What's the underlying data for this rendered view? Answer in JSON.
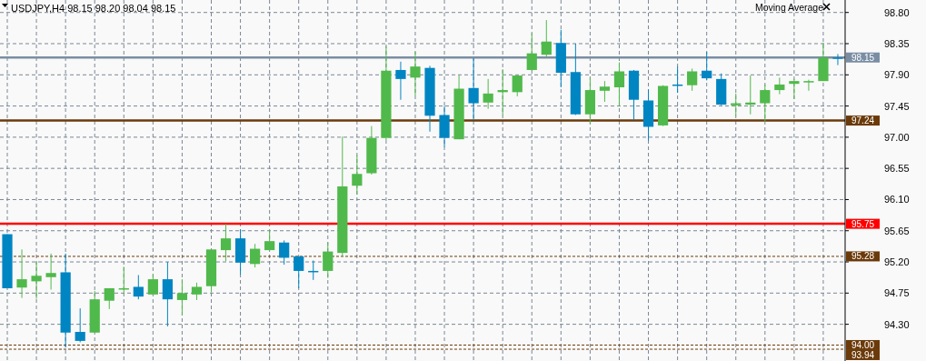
{
  "chart_data": {
    "type": "candlestick",
    "title": "USDJPY,H4  98.15 98.20 98.04 98.15",
    "annotations": [
      "Moving Average"
    ],
    "categories": [
      null,
      null,
      null,
      null,
      null,
      null,
      null,
      null,
      null,
      null,
      null,
      null,
      null,
      null,
      null,
      null,
      null,
      null,
      null,
      null,
      null,
      null,
      null,
      null,
      null,
      null,
      null,
      null,
      null,
      null,
      null,
      null,
      null,
      null,
      null,
      null,
      null,
      null,
      null,
      null,
      null,
      null,
      null,
      null,
      null,
      null,
      null,
      null,
      null,
      null,
      null,
      null,
      null,
      null,
      null,
      null,
      null,
      null
    ],
    "ohlc": [
      [
        95.6,
        95.6,
        94.82,
        94.82
      ],
      [
        94.83,
        95.38,
        94.68,
        94.95
      ],
      [
        94.92,
        95.2,
        94.67,
        95.0
      ],
      [
        94.98,
        95.32,
        94.8,
        95.04
      ],
      [
        95.05,
        95.32,
        93.97,
        94.18
      ],
      [
        94.19,
        94.53,
        94.04,
        94.06
      ],
      [
        94.18,
        94.78,
        94.18,
        94.66
      ],
      [
        94.64,
        94.82,
        94.52,
        94.82
      ],
      [
        94.8,
        95.13,
        94.74,
        94.82
      ],
      [
        94.84,
        95.01,
        94.66,
        94.7
      ],
      [
        94.73,
        95.02,
        94.73,
        94.95
      ],
      [
        94.95,
        95.2,
        94.27,
        94.66
      ],
      [
        94.65,
        94.95,
        94.43,
        94.75
      ],
      [
        94.73,
        94.9,
        94.65,
        94.84
      ],
      [
        94.85,
        95.38,
        94.76,
        95.38
      ],
      [
        95.37,
        95.75,
        95.21,
        95.54
      ],
      [
        95.54,
        95.67,
        95.02,
        95.19
      ],
      [
        95.17,
        95.46,
        95.12,
        95.39
      ],
      [
        95.37,
        95.66,
        95.37,
        95.5
      ],
      [
        95.48,
        95.51,
        95.16,
        95.26
      ],
      [
        95.28,
        95.28,
        94.82,
        95.07
      ],
      [
        95.07,
        95.22,
        94.94,
        95.06
      ],
      [
        95.07,
        95.48,
        94.97,
        95.35
      ],
      [
        95.33,
        97.01,
        95.28,
        96.29
      ],
      [
        96.3,
        96.74,
        96.17,
        96.47
      ],
      [
        96.48,
        97.16,
        96.46,
        96.99
      ],
      [
        96.99,
        98.31,
        96.96,
        97.96
      ],
      [
        97.97,
        98.09,
        97.54,
        97.84
      ],
      [
        97.86,
        98.23,
        97.6,
        98.02
      ],
      [
        98.0,
        98.03,
        97.08,
        97.31
      ],
      [
        97.32,
        97.45,
        96.86,
        96.99
      ],
      [
        96.97,
        97.89,
        96.97,
        97.7
      ],
      [
        97.71,
        98.14,
        97.25,
        97.49
      ],
      [
        97.5,
        97.84,
        97.41,
        97.63
      ],
      [
        97.65,
        97.98,
        97.32,
        97.68
      ],
      [
        97.65,
        97.89,
        97.59,
        97.89
      ],
      [
        97.97,
        98.5,
        97.96,
        98.21
      ],
      [
        98.19,
        98.69,
        98.16,
        98.38
      ],
      [
        98.36,
        98.55,
        97.72,
        97.93
      ],
      [
        97.94,
        98.35,
        97.32,
        97.33
      ],
      [
        97.33,
        97.86,
        97.19,
        97.68
      ],
      [
        97.67,
        97.81,
        97.51,
        97.73
      ],
      [
        97.72,
        98.08,
        97.45,
        97.95
      ],
      [
        97.96,
        97.97,
        97.25,
        97.54
      ],
      [
        97.53,
        97.69,
        96.95,
        97.15
      ],
      [
        97.17,
        97.75,
        97.16,
        97.74
      ],
      [
        97.76,
        98.02,
        97.64,
        97.75
      ],
      [
        97.75,
        97.99,
        97.67,
        97.95
      ],
      [
        97.96,
        98.23,
        97.82,
        97.85
      ],
      [
        97.84,
        97.92,
        97.46,
        97.47
      ],
      [
        97.46,
        97.63,
        97.31,
        97.49
      ],
      [
        97.47,
        97.89,
        97.33,
        97.5
      ],
      [
        97.49,
        97.76,
        97.22,
        97.68
      ],
      [
        97.68,
        97.86,
        97.62,
        97.76
      ],
      [
        97.77,
        97.84,
        97.55,
        97.81
      ],
      [
        97.79,
        97.83,
        97.67,
        97.81
      ],
      [
        97.81,
        98.36,
        97.81,
        98.15
      ],
      [
        98.15,
        98.2,
        98.04,
        98.15
      ]
    ],
    "colors": [
      "#0085c3",
      "#50b94b",
      "#50b94b",
      "#50b94b",
      "#0085c3",
      "#0085c3",
      "#50b94b",
      "#50b94b",
      "#50b94b",
      "#0085c3",
      "#50b94b",
      "#0085c3",
      "#50b94b",
      "#50b94b",
      "#50b94b",
      "#50b94b",
      "#0085c3",
      "#50b94b",
      "#50b94b",
      "#0085c3",
      "#0085c3",
      "#0085c3",
      "#50b94b",
      "#50b94b",
      "#50b94b",
      "#50b94b",
      "#50b94b",
      "#0085c3",
      "#50b94b",
      "#0085c3",
      "#0085c3",
      "#50b94b",
      "#0085c3",
      "#50b94b",
      "#50b94b",
      "#50b94b",
      "#50b94b",
      "#50b94b",
      "#0085c3",
      "#0085c3",
      "#50b94b",
      "#50b94b",
      "#50b94b",
      "#0085c3",
      "#0085c3",
      "#50b94b",
      "#0085c3",
      "#50b94b",
      "#0085c3",
      "#0085c3",
      "#50b94b",
      "#50b94b",
      "#50b94b",
      "#50b94b",
      "#50b94b",
      "#50b94b",
      "#50b94b",
      "#0085c3"
    ],
    "ylim": [
      93.77,
      98.98
    ],
    "yticks": [
      {
        "value": 94.3,
        "label": "94.30"
      },
      94.75,
      {
        "value": 95.2,
        "label": "95.20"
      },
      95.65,
      {
        "value": 96.1,
        "label": "96.10"
      },
      96.55,
      {
        "value": 97.0,
        "label": "97.00"
      },
      97.45,
      {
        "value": 97.9,
        "label": "97.90"
      },
      98.35,
      {
        "value": 98.8,
        "label": "98.80"
      }
    ],
    "ref_lines": [
      {
        "axis": "y",
        "value": 98.15,
        "label": "98.15",
        "color": "#7a8ea3",
        "line_style": "solid"
      },
      {
        "axis": "y",
        "value": 97.24,
        "label": "97.24",
        "color": "#6b3a0a",
        "line_style": "solid"
      },
      {
        "axis": "y",
        "value": 95.75,
        "label": "95.75",
        "color": "#ff0000",
        "line_style": "solid"
      },
      {
        "axis": "y",
        "value": 95.28,
        "label": "95.28",
        "color": "#6b3a0a",
        "line_style": "dashed"
      },
      {
        "axis": "y",
        "value": 94.0,
        "label": "94.00",
        "color": "#6b3a0a",
        "line_style": "dashed"
      },
      {
        "axis": "y",
        "value": 93.94,
        "label": "93.94",
        "color": "#6b3a0a",
        "line_style": "dashed"
      }
    ],
    "grid": true
  }
}
